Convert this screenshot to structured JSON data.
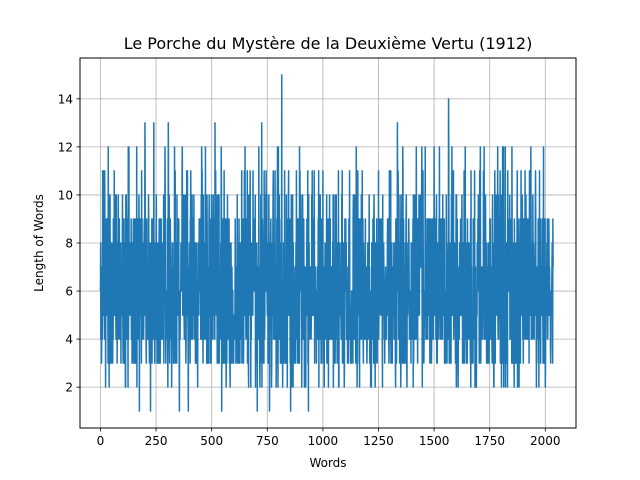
{
  "chart_data": {
    "type": "line",
    "title": "Le Porche du Mystère de la Deuxième Vertu (1912)",
    "xlabel": "Words",
    "ylabel": "Length of Words",
    "xlim": [
      -92,
      2138
    ],
    "ylim": [
      0.3,
      15.7
    ],
    "xticks": [
      0,
      250,
      500,
      750,
      1000,
      1250,
      1500,
      1750,
      2000
    ],
    "yticks": [
      2,
      4,
      6,
      8,
      10,
      12,
      14
    ],
    "grid": true,
    "color": "#1f77b4",
    "n_points": 2036,
    "value_range": [
      1,
      15
    ],
    "peaks": [
      {
        "x": 0,
        "y": 8
      },
      {
        "x": 20,
        "y": 9
      },
      {
        "x": 23,
        "y": 2
      },
      {
        "x": 45,
        "y": 8
      },
      {
        "x": 80,
        "y": 10
      },
      {
        "x": 105,
        "y": 9
      },
      {
        "x": 125,
        "y": 12
      },
      {
        "x": 175,
        "y": 1
      },
      {
        "x": 200,
        "y": 13
      },
      {
        "x": 225,
        "y": 1
      },
      {
        "x": 240,
        "y": 13
      },
      {
        "x": 305,
        "y": 13
      },
      {
        "x": 355,
        "y": 1
      },
      {
        "x": 395,
        "y": 1
      },
      {
        "x": 455,
        "y": 12
      },
      {
        "x": 515,
        "y": 13
      },
      {
        "x": 545,
        "y": 1
      },
      {
        "x": 635,
        "y": 11
      },
      {
        "x": 705,
        "y": 1
      },
      {
        "x": 725,
        "y": 13
      },
      {
        "x": 760,
        "y": 1
      },
      {
        "x": 800,
        "y": 12
      },
      {
        "x": 815,
        "y": 15
      },
      {
        "x": 855,
        "y": 1
      },
      {
        "x": 895,
        "y": 12
      },
      {
        "x": 935,
        "y": 1
      },
      {
        "x": 1000,
        "y": 11
      },
      {
        "x": 1025,
        "y": 2
      },
      {
        "x": 1085,
        "y": 10
      },
      {
        "x": 1150,
        "y": 12
      },
      {
        "x": 1165,
        "y": 2
      },
      {
        "x": 1215,
        "y": 2
      },
      {
        "x": 1250,
        "y": 11
      },
      {
        "x": 1305,
        "y": 11
      },
      {
        "x": 1335,
        "y": 13
      },
      {
        "x": 1350,
        "y": 2
      },
      {
        "x": 1420,
        "y": 12
      },
      {
        "x": 1450,
        "y": 11
      },
      {
        "x": 1500,
        "y": 12
      },
      {
        "x": 1565,
        "y": 14
      },
      {
        "x": 1580,
        "y": 12
      },
      {
        "x": 1600,
        "y": 2
      },
      {
        "x": 1640,
        "y": 12
      },
      {
        "x": 1690,
        "y": 2
      },
      {
        "x": 1705,
        "y": 11
      },
      {
        "x": 1800,
        "y": 10
      },
      {
        "x": 1820,
        "y": 12
      },
      {
        "x": 1830,
        "y": 2
      },
      {
        "x": 1860,
        "y": 2
      },
      {
        "x": 1935,
        "y": 12
      },
      {
        "x": 1960,
        "y": 2
      },
      {
        "x": 2000,
        "y": 2
      },
      {
        "x": 2030,
        "y": 7
      }
    ]
  }
}
